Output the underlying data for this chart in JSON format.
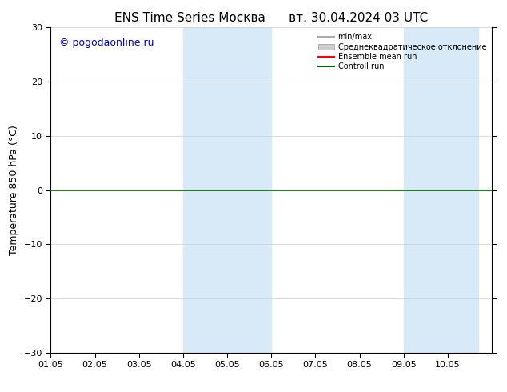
{
  "title_left": "ENS Time Series Москва",
  "title_right": "вт. 30.04.2024 03 UTC",
  "ylabel": "Temperature 850 hPa (°C)",
  "watermark": "© pogodaonline.ru",
  "ylim": [
    -30,
    30
  ],
  "yticks": [
    -30,
    -20,
    -10,
    0,
    10,
    20,
    30
  ],
  "xlim": [
    0,
    10
  ],
  "xtick_labels": [
    "01.05",
    "02.05",
    "03.05",
    "04.05",
    "05.05",
    "06.05",
    "07.05",
    "08.05",
    "09.05",
    "10.05"
  ],
  "xtick_positions": [
    0,
    1,
    2,
    3,
    4,
    5,
    6,
    7,
    8,
    9
  ],
  "shaded_regions": [
    {
      "xmin": 3.0,
      "xmax": 4.0,
      "color": "#d8eaf7"
    },
    {
      "xmin": 4.0,
      "xmax": 5.0,
      "color": "#d8eaf7"
    },
    {
      "xmin": 8.0,
      "xmax": 9.0,
      "color": "#d8eaf7"
    },
    {
      "xmin": 9.0,
      "xmax": 9.7,
      "color": "#d8eaf7"
    }
  ],
  "hline_y": 0,
  "hline_color": "#006400",
  "hline_lw": 1.2,
  "legend_items": [
    {
      "label": "min/max",
      "color": "#aaaaaa",
      "lw": 1.5,
      "style": "line"
    },
    {
      "label": "Среднеквадратическое отклонение",
      "color": "#cccccc",
      "lw": 8,
      "style": "patch"
    },
    {
      "label": "Ensemble mean run",
      "color": "#ff0000",
      "lw": 1.5,
      "style": "line"
    },
    {
      "label": "Controll run",
      "color": "#006400",
      "lw": 1.5,
      "style": "line"
    }
  ],
  "bg_color": "#ffffff",
  "grid_color": "#aaaaaa",
  "title_fontsize": 11,
  "tick_fontsize": 8,
  "ylabel_fontsize": 9,
  "watermark_color": "#0000cc",
  "watermark_fontsize": 9,
  "legend_fontsize": 7
}
